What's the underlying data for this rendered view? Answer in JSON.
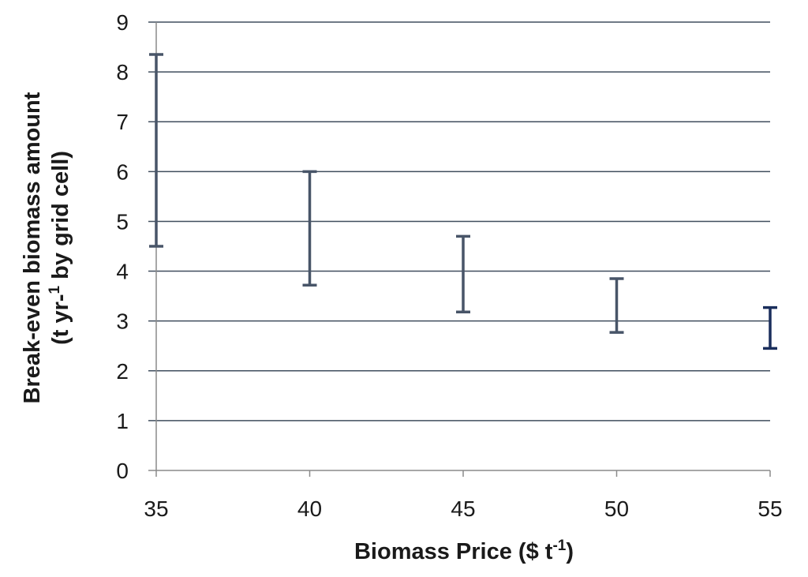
{
  "chart_data": {
    "type": "errorbar",
    "xlabel": {
      "text": "Biomass Price ($ t",
      "sup": "-1",
      "suffix": ")"
    },
    "ylabel": {
      "line1": "Break-even biomass amount",
      "line2_pre": "(t yr-",
      "line2_sup": "1",
      "line2_post": " by grid cell)"
    },
    "x_ticks": [
      "35",
      "40",
      "45",
      "50",
      "55"
    ],
    "y_ticks": [
      "0",
      "1",
      "2",
      "3",
      "4",
      "5",
      "6",
      "7",
      "8",
      "9"
    ],
    "xlim": [
      35,
      55
    ],
    "ylim": [
      0,
      9
    ],
    "grid": true,
    "ranges": [
      {
        "x": 35,
        "low": 4.5,
        "high": 8.35,
        "color": "#485568"
      },
      {
        "x": 40,
        "low": 3.72,
        "high": 6.0,
        "color": "#485568"
      },
      {
        "x": 45,
        "low": 3.18,
        "high": 4.7,
        "color": "#485568"
      },
      {
        "x": 50,
        "low": 2.77,
        "high": 3.85,
        "color": "#485568"
      },
      {
        "x": 55,
        "low": 2.45,
        "high": 3.27,
        "color": "#1a2e5c"
      }
    ]
  }
}
